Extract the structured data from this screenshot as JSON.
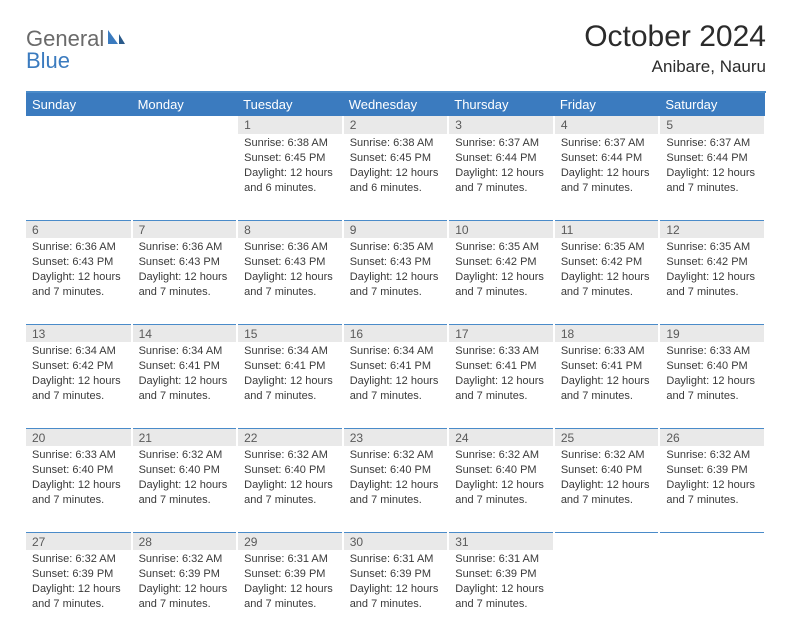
{
  "logo": {
    "text1": "General",
    "text2": "Blue"
  },
  "title": "October 2024",
  "location": "Anibare, Nauru",
  "colors": {
    "header_bg": "#3b7bbf",
    "daynum_bg": "#e9e9e9",
    "divider": "#4a8bc9",
    "logo_gray": "#6a6a6a",
    "logo_blue": "#3b7bbf",
    "text": "#3a3a3a"
  },
  "weekdays": [
    "Sunday",
    "Monday",
    "Tuesday",
    "Wednesday",
    "Thursday",
    "Friday",
    "Saturday"
  ],
  "weeks": [
    [
      null,
      null,
      {
        "n": "1",
        "sr": "Sunrise: 6:38 AM",
        "ss": "Sunset: 6:45 PM",
        "d1": "Daylight: 12 hours",
        "d2": "and 6 minutes."
      },
      {
        "n": "2",
        "sr": "Sunrise: 6:38 AM",
        "ss": "Sunset: 6:45 PM",
        "d1": "Daylight: 12 hours",
        "d2": "and 6 minutes."
      },
      {
        "n": "3",
        "sr": "Sunrise: 6:37 AM",
        "ss": "Sunset: 6:44 PM",
        "d1": "Daylight: 12 hours",
        "d2": "and 7 minutes."
      },
      {
        "n": "4",
        "sr": "Sunrise: 6:37 AM",
        "ss": "Sunset: 6:44 PM",
        "d1": "Daylight: 12 hours",
        "d2": "and 7 minutes."
      },
      {
        "n": "5",
        "sr": "Sunrise: 6:37 AM",
        "ss": "Sunset: 6:44 PM",
        "d1": "Daylight: 12 hours",
        "d2": "and 7 minutes."
      }
    ],
    [
      {
        "n": "6",
        "sr": "Sunrise: 6:36 AM",
        "ss": "Sunset: 6:43 PM",
        "d1": "Daylight: 12 hours",
        "d2": "and 7 minutes."
      },
      {
        "n": "7",
        "sr": "Sunrise: 6:36 AM",
        "ss": "Sunset: 6:43 PM",
        "d1": "Daylight: 12 hours",
        "d2": "and 7 minutes."
      },
      {
        "n": "8",
        "sr": "Sunrise: 6:36 AM",
        "ss": "Sunset: 6:43 PM",
        "d1": "Daylight: 12 hours",
        "d2": "and 7 minutes."
      },
      {
        "n": "9",
        "sr": "Sunrise: 6:35 AM",
        "ss": "Sunset: 6:43 PM",
        "d1": "Daylight: 12 hours",
        "d2": "and 7 minutes."
      },
      {
        "n": "10",
        "sr": "Sunrise: 6:35 AM",
        "ss": "Sunset: 6:42 PM",
        "d1": "Daylight: 12 hours",
        "d2": "and 7 minutes."
      },
      {
        "n": "11",
        "sr": "Sunrise: 6:35 AM",
        "ss": "Sunset: 6:42 PM",
        "d1": "Daylight: 12 hours",
        "d2": "and 7 minutes."
      },
      {
        "n": "12",
        "sr": "Sunrise: 6:35 AM",
        "ss": "Sunset: 6:42 PM",
        "d1": "Daylight: 12 hours",
        "d2": "and 7 minutes."
      }
    ],
    [
      {
        "n": "13",
        "sr": "Sunrise: 6:34 AM",
        "ss": "Sunset: 6:42 PM",
        "d1": "Daylight: 12 hours",
        "d2": "and 7 minutes."
      },
      {
        "n": "14",
        "sr": "Sunrise: 6:34 AM",
        "ss": "Sunset: 6:41 PM",
        "d1": "Daylight: 12 hours",
        "d2": "and 7 minutes."
      },
      {
        "n": "15",
        "sr": "Sunrise: 6:34 AM",
        "ss": "Sunset: 6:41 PM",
        "d1": "Daylight: 12 hours",
        "d2": "and 7 minutes."
      },
      {
        "n": "16",
        "sr": "Sunrise: 6:34 AM",
        "ss": "Sunset: 6:41 PM",
        "d1": "Daylight: 12 hours",
        "d2": "and 7 minutes."
      },
      {
        "n": "17",
        "sr": "Sunrise: 6:33 AM",
        "ss": "Sunset: 6:41 PM",
        "d1": "Daylight: 12 hours",
        "d2": "and 7 minutes."
      },
      {
        "n": "18",
        "sr": "Sunrise: 6:33 AM",
        "ss": "Sunset: 6:41 PM",
        "d1": "Daylight: 12 hours",
        "d2": "and 7 minutes."
      },
      {
        "n": "19",
        "sr": "Sunrise: 6:33 AM",
        "ss": "Sunset: 6:40 PM",
        "d1": "Daylight: 12 hours",
        "d2": "and 7 minutes."
      }
    ],
    [
      {
        "n": "20",
        "sr": "Sunrise: 6:33 AM",
        "ss": "Sunset: 6:40 PM",
        "d1": "Daylight: 12 hours",
        "d2": "and 7 minutes."
      },
      {
        "n": "21",
        "sr": "Sunrise: 6:32 AM",
        "ss": "Sunset: 6:40 PM",
        "d1": "Daylight: 12 hours",
        "d2": "and 7 minutes."
      },
      {
        "n": "22",
        "sr": "Sunrise: 6:32 AM",
        "ss": "Sunset: 6:40 PM",
        "d1": "Daylight: 12 hours",
        "d2": "and 7 minutes."
      },
      {
        "n": "23",
        "sr": "Sunrise: 6:32 AM",
        "ss": "Sunset: 6:40 PM",
        "d1": "Daylight: 12 hours",
        "d2": "and 7 minutes."
      },
      {
        "n": "24",
        "sr": "Sunrise: 6:32 AM",
        "ss": "Sunset: 6:40 PM",
        "d1": "Daylight: 12 hours",
        "d2": "and 7 minutes."
      },
      {
        "n": "25",
        "sr": "Sunrise: 6:32 AM",
        "ss": "Sunset: 6:40 PM",
        "d1": "Daylight: 12 hours",
        "d2": "and 7 minutes."
      },
      {
        "n": "26",
        "sr": "Sunrise: 6:32 AM",
        "ss": "Sunset: 6:39 PM",
        "d1": "Daylight: 12 hours",
        "d2": "and 7 minutes."
      }
    ],
    [
      {
        "n": "27",
        "sr": "Sunrise: 6:32 AM",
        "ss": "Sunset: 6:39 PM",
        "d1": "Daylight: 12 hours",
        "d2": "and 7 minutes."
      },
      {
        "n": "28",
        "sr": "Sunrise: 6:32 AM",
        "ss": "Sunset: 6:39 PM",
        "d1": "Daylight: 12 hours",
        "d2": "and 7 minutes."
      },
      {
        "n": "29",
        "sr": "Sunrise: 6:31 AM",
        "ss": "Sunset: 6:39 PM",
        "d1": "Daylight: 12 hours",
        "d2": "and 7 minutes."
      },
      {
        "n": "30",
        "sr": "Sunrise: 6:31 AM",
        "ss": "Sunset: 6:39 PM",
        "d1": "Daylight: 12 hours",
        "d2": "and 7 minutes."
      },
      {
        "n": "31",
        "sr": "Sunrise: 6:31 AM",
        "ss": "Sunset: 6:39 PM",
        "d1": "Daylight: 12 hours",
        "d2": "and 7 minutes."
      },
      null,
      null
    ]
  ]
}
